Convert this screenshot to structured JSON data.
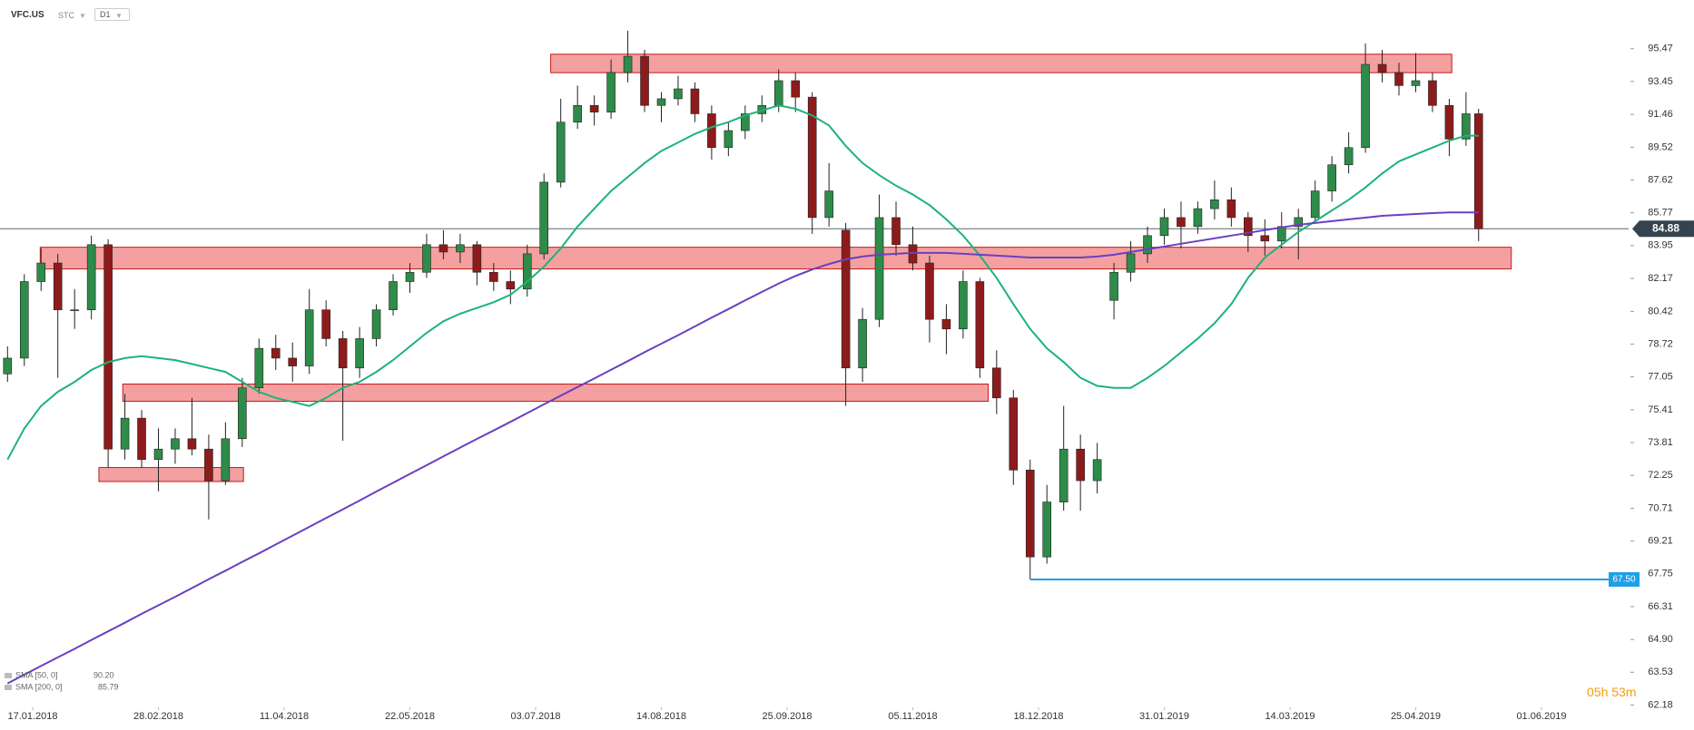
{
  "header": {
    "symbol": "VFC.US",
    "mode": "STC",
    "timeframe": "D1"
  },
  "timer": "05h 53m",
  "chart_data": {
    "type": "candlestick",
    "x": [
      -6,
      -2,
      2,
      6,
      10,
      14,
      18,
      22,
      26,
      30,
      34,
      38,
      42,
      46,
      50,
      54,
      58,
      62,
      66,
      70,
      74,
      78,
      82,
      86,
      90,
      94,
      98,
      102,
      106,
      110,
      114,
      118,
      122,
      126,
      130,
      134,
      138,
      142,
      146,
      150,
      154,
      158,
      162,
      166,
      170,
      174,
      178,
      182,
      186,
      190,
      194,
      198,
      202,
      206,
      210,
      214,
      218,
      222,
      226,
      230,
      234,
      238,
      242,
      246,
      250,
      254,
      258,
      262,
      266,
      270,
      274,
      278,
      282,
      286,
      290,
      294,
      298,
      302,
      306,
      310,
      314,
      318,
      322,
      326,
      330,
      334,
      338,
      342,
      345
    ],
    "candles": [
      [
        77.2,
        78.6,
        76.8,
        78
      ],
      [
        78,
        82.4,
        77.6,
        82
      ],
      [
        82,
        83.8,
        81.5,
        83
      ],
      [
        83,
        83.5,
        77,
        80.5
      ],
      [
        80.5,
        81.6,
        79.5,
        80.5
      ],
      [
        80.5,
        84.5,
        80,
        84
      ],
      [
        84,
        84.3,
        72.6,
        73.5
      ],
      [
        73.5,
        76.2,
        73,
        75
      ],
      [
        75,
        75.4,
        72.6,
        73
      ],
      [
        73,
        74.5,
        71.5,
        73.5
      ],
      [
        73.5,
        74.5,
        72.8,
        74
      ],
      [
        74,
        76,
        73.2,
        73.5
      ],
      [
        73.5,
        74.2,
        70.2,
        72
      ],
      [
        72,
        74.8,
        71.8,
        74
      ],
      [
        74,
        77,
        73.6,
        76.5
      ],
      [
        76.5,
        79,
        76.2,
        78.5
      ],
      [
        78.5,
        79.2,
        77.4,
        78
      ],
      [
        78,
        78.8,
        76.8,
        77.6
      ],
      [
        77.6,
        81.6,
        77.2,
        80.5
      ],
      [
        80.5,
        81,
        78.6,
        79
      ],
      [
        79,
        79.4,
        73.9,
        77.5
      ],
      [
        77.5,
        79.6,
        77,
        79
      ],
      [
        79,
        80.8,
        78.6,
        80.5
      ],
      [
        80.5,
        82.4,
        80.2,
        82
      ],
      [
        82,
        83,
        81.4,
        82.5
      ],
      [
        82.5,
        84.6,
        82.2,
        84
      ],
      [
        84,
        84.8,
        83.2,
        83.6
      ],
      [
        83.6,
        84.6,
        83,
        84
      ],
      [
        84,
        84.2,
        81.8,
        82.5
      ],
      [
        82.5,
        83,
        81.5,
        82
      ],
      [
        82,
        82.6,
        80.8,
        81.6
      ],
      [
        81.6,
        84,
        81.2,
        83.5
      ],
      [
        83.5,
        88,
        83.2,
        87.5
      ],
      [
        87.5,
        92.4,
        87.2,
        91
      ],
      [
        91,
        93.2,
        90.6,
        92
      ],
      [
        92,
        92.6,
        90.8,
        91.6
      ],
      [
        91.6,
        94.8,
        91.2,
        94
      ],
      [
        94,
        96.6,
        93.4,
        95
      ],
      [
        95,
        95.4,
        91.6,
        92
      ],
      [
        92,
        92.8,
        91,
        92.4
      ],
      [
        92.4,
        93.8,
        92,
        93
      ],
      [
        93,
        93.4,
        91,
        91.5
      ],
      [
        91.5,
        92,
        88.8,
        89.5
      ],
      [
        89.5,
        91,
        89,
        90.5
      ],
      [
        90.5,
        92,
        90,
        91.5
      ],
      [
        91.5,
        92.6,
        91,
        92
      ],
      [
        92,
        94.2,
        91.6,
        93.5
      ],
      [
        93.5,
        94,
        91.6,
        92.5
      ],
      [
        92.5,
        92.8,
        84.6,
        85.5
      ],
      [
        85.5,
        88.6,
        85,
        87
      ],
      [
        84.8,
        85.2,
        75.6,
        77.5
      ],
      [
        77.5,
        80.6,
        76.8,
        80
      ],
      [
        80,
        86.8,
        79.6,
        85.5
      ],
      [
        85.5,
        86.4,
        83.4,
        84
      ],
      [
        84,
        85,
        82.6,
        83
      ],
      [
        83,
        83.4,
        78.8,
        80
      ],
      [
        80,
        80.8,
        78.2,
        79.5
      ],
      [
        79.5,
        82.6,
        79,
        82
      ],
      [
        82,
        82.2,
        77,
        77.5
      ],
      [
        77.5,
        78.4,
        75.2,
        76
      ],
      [
        76,
        76.4,
        71.8,
        72.5
      ],
      [
        72.5,
        73,
        67.5,
        68.5
      ],
      [
        68.5,
        71.8,
        68.2,
        71
      ],
      [
        71,
        75.6,
        70.6,
        73.5
      ],
      [
        73.5,
        74.2,
        70.6,
        72
      ],
      [
        72,
        73.8,
        71.4,
        73
      ],
      [
        81,
        83,
        80,
        82.5
      ],
      [
        82.5,
        84.2,
        82,
        83.5
      ],
      [
        83.5,
        85,
        83,
        84.5
      ],
      [
        84.5,
        86,
        84,
        85.5
      ],
      [
        85.5,
        86.4,
        83.8,
        85
      ],
      [
        85,
        86.4,
        84.6,
        86
      ],
      [
        86,
        87.6,
        85.4,
        86.5
      ],
      [
        86.5,
        87.2,
        85,
        85.5
      ],
      [
        85.5,
        85.8,
        83.6,
        84.5
      ],
      [
        84.5,
        85.4,
        83.4,
        84.2
      ],
      [
        84.2,
        85.8,
        83.8,
        85
      ],
      [
        85,
        86,
        83.2,
        85.5
      ],
      [
        85.5,
        87.6,
        85.2,
        87
      ],
      [
        87,
        89,
        86.4,
        88.5
      ],
      [
        88.5,
        90.4,
        88,
        89.5
      ],
      [
        89.5,
        95.8,
        89.2,
        94.5
      ],
      [
        94.5,
        95.4,
        93.4,
        94
      ],
      [
        94,
        94.6,
        92.6,
        93.2
      ],
      [
        93.2,
        95.2,
        92.8,
        93.5
      ],
      [
        93.5,
        94,
        91.6,
        92
      ],
      [
        92,
        92.4,
        89,
        90
      ],
      [
        90,
        92.8,
        89.6,
        91.5
      ],
      [
        91.5,
        91.8,
        84.2,
        84.88
      ]
    ],
    "up_color": "#2e8b4a",
    "down_color": "#8e1b1b",
    "series": [
      {
        "name": "SMA [50, 0]",
        "last_label": "90.20",
        "color": "#1db37a",
        "values": [
          73.0,
          74.5,
          75.6,
          76.3,
          76.8,
          77.4,
          77.8,
          78.0,
          78.1,
          78.0,
          77.9,
          77.7,
          77.5,
          77.3,
          76.8,
          76.3,
          76.0,
          75.8,
          75.6,
          76.0,
          76.5,
          76.8,
          77.3,
          77.9,
          78.6,
          79.3,
          79.9,
          80.3,
          80.6,
          80.9,
          81.3,
          82.0,
          82.8,
          83.8,
          85.0,
          86.0,
          87.0,
          87.8,
          88.6,
          89.3,
          89.8,
          90.3,
          90.7,
          91.0,
          91.4,
          91.7,
          92.0,
          91.8,
          91.4,
          90.8,
          89.6,
          88.6,
          87.9,
          87.3,
          86.8,
          86.2,
          85.4,
          84.5,
          83.4,
          82.2,
          80.8,
          79.5,
          78.5,
          77.8,
          77.0,
          76.6,
          76.5,
          76.5,
          77.0,
          77.6,
          78.3,
          79.0,
          79.8,
          80.8,
          82.2,
          83.3,
          84.0,
          84.7,
          85.3,
          85.9,
          86.5,
          87.2,
          88.0,
          88.7,
          89.1,
          89.5,
          89.9,
          90.2,
          90.2
        ]
      },
      {
        "name": "SMA [200, 0]",
        "last_label": "85.79",
        "color": "#6b3fc2",
        "values": [
          63.07,
          63.43,
          63.79,
          64.15,
          64.51,
          64.88,
          65.25,
          65.62,
          66.0,
          66.37,
          66.74,
          67.12,
          67.51,
          67.89,
          68.28,
          68.66,
          69.06,
          69.46,
          69.86,
          70.26,
          70.66,
          71.07,
          71.49,
          71.9,
          72.32,
          72.73,
          73.15,
          73.57,
          73.99,
          74.4,
          74.82,
          75.25,
          75.68,
          76.11,
          76.54,
          76.97,
          77.41,
          77.85,
          78.3,
          78.74,
          79.18,
          79.63,
          80.09,
          80.54,
          81.0,
          81.45,
          81.9,
          82.3,
          82.65,
          82.95,
          83.2,
          83.35,
          83.45,
          83.5,
          83.55,
          83.55,
          83.55,
          83.5,
          83.45,
          83.4,
          83.35,
          83.3,
          83.3,
          83.3,
          83.3,
          83.35,
          83.45,
          83.6,
          83.75,
          83.9,
          84.05,
          84.2,
          84.35,
          84.5,
          84.65,
          84.8,
          84.95,
          85.1,
          85.2,
          85.3,
          85.4,
          85.5,
          85.6,
          85.65,
          85.7,
          85.75,
          85.79,
          85.79,
          85.79
        ]
      }
    ],
    "zones": [
      {
        "x": [
          123.6,
          338.6
        ],
        "y": [
          93.99,
          95.13
        ]
      },
      {
        "x": [
          1.8,
          352.8
        ],
        "y": [
          82.68,
          83.86
        ]
      },
      {
        "x": [
          21.5,
          228
        ],
        "y": [
          75.83,
          76.69
        ]
      },
      {
        "x": [
          15.8,
          50.3
        ],
        "y": [
          71.96,
          72.62
        ]
      }
    ],
    "zone_color": "#f08080",
    "zone_stroke": "#c41a1a",
    "price_line": {
      "value": 84.88,
      "color": "#5a6670"
    },
    "level_line": {
      "x0": 238,
      "value": 67.5,
      "label": "67.50",
      "color": "#1ea0e6"
    },
    "log_scale": true,
    "ylim": [
      62.09,
      98.56
    ],
    "yticks": [
      95.47,
      93.45,
      91.46,
      89.52,
      87.62,
      85.77,
      83.95,
      82.17,
      80.42,
      78.72,
      77.05,
      75.41,
      73.81,
      72.25,
      70.71,
      69.21,
      67.75,
      66.31,
      {
        "value": 64.9,
        "label": "64.90"
      },
      63.53,
      62.18
    ],
    "xlim": [
      -7.8,
      380.8
    ],
    "xticks": [
      {
        "value": 0,
        "label": "17.01.2018"
      },
      {
        "value": 30,
        "label": "28.02.2018"
      },
      {
        "value": 60,
        "label": "11.04.2018"
      },
      {
        "value": 90,
        "label": "22.05.2018"
      },
      {
        "value": 120,
        "label": "03.07.2018"
      },
      {
        "value": 150,
        "label": "14.08.2018"
      },
      {
        "value": 180,
        "label": "25.09.2018"
      },
      {
        "value": 210,
        "label": "05.11.2018"
      },
      {
        "value": 240,
        "label": "18.12.2018"
      },
      {
        "value": 270,
        "label": "31.01.2019"
      },
      {
        "value": 300,
        "label": "14.03.2019"
      },
      {
        "value": 330,
        "label": "25.04.2019"
      },
      {
        "value": 360,
        "label": "01.06.2019"
      }
    ],
    "grid": false
  }
}
